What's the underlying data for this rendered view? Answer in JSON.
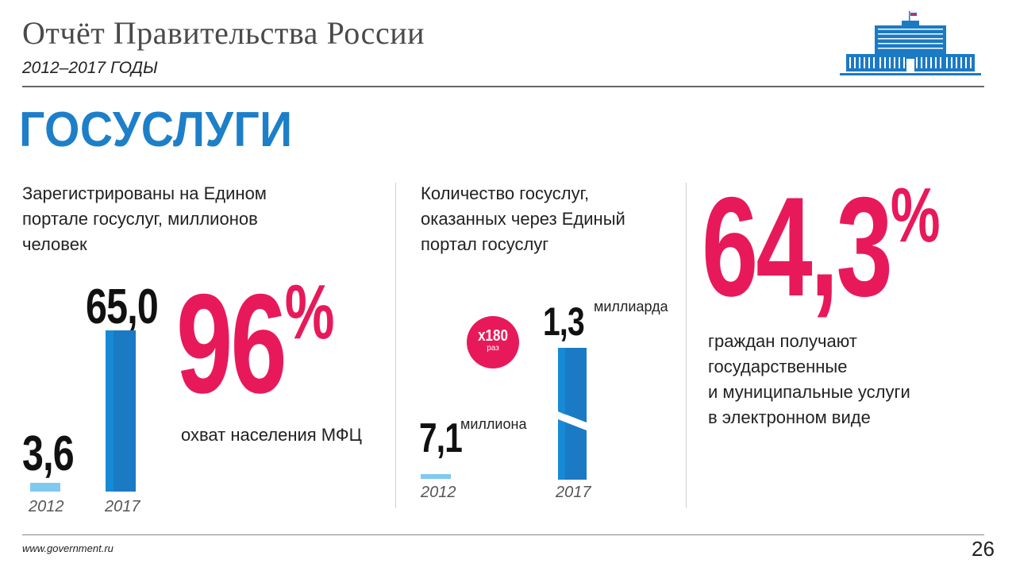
{
  "header": {
    "title": "Отчёт Правительства России",
    "subtitle": "2012–2017 ГОДЫ"
  },
  "section_title": "ГОСУСЛУГИ",
  "block1": {
    "description": [
      "Зарегистрированы на Едином",
      "портале госуслуг, миллионов",
      "человек"
    ],
    "value_2012": "3,6",
    "value_2017": "65,0",
    "year_2012": "2012",
    "year_2017": "2017",
    "percent": "96",
    "percent_sign": "%",
    "percent_caption": "охват населения МФЦ"
  },
  "block2": {
    "description": [
      "Количество госуслуг,",
      "оказанных через Единый",
      "портал госуслуг"
    ],
    "value_2012": "7,1",
    "unit_2012": "миллиона",
    "value_2017": "1,3",
    "unit_2017": "миллиарда",
    "badge_value": "x180",
    "badge_unit": "раз",
    "year_2012": "2012",
    "year_2017": "2017"
  },
  "block3": {
    "percent": "64,3",
    "percent_sign": "%",
    "caption": [
      "граждан получают",
      "государственные",
      "и муниципальные услуги",
      "в электронном виде"
    ]
  },
  "chart_data": [
    {
      "type": "bar",
      "categories": [
        "2012",
        "2017"
      ],
      "values": [
        3.6,
        65.0
      ],
      "title": "Зарегистрированы на Едином портале госуслуг, миллионов человек"
    },
    {
      "type": "bar",
      "categories": [
        "2012",
        "2017"
      ],
      "values": [
        7.1,
        1300
      ],
      "title": "Количество госуслуг, оказанных через Единый портал госуслуг"
    }
  ],
  "footer": {
    "url": "www.government.ru",
    "page_number": "26"
  },
  "colors": {
    "accent_blue": "#1b7ac4",
    "light_blue": "#80caef",
    "accent_pink": "#e8195a"
  },
  "icons": {
    "logo": "government-house-icon"
  }
}
